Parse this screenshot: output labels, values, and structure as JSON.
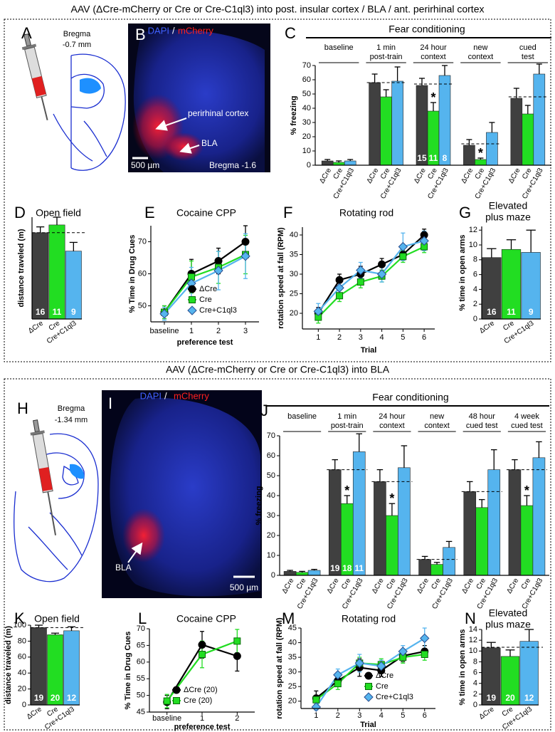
{
  "sections": [
    {
      "header": "AAV (ΔCre-mCherry or Cre or Cre-C1ql3) into post. insular cortex / BLA / ant. perirhinal cortex"
    },
    {
      "header": "AAV (ΔCre-mCherry or Cre or Cre-C1ql3) into BLA"
    }
  ],
  "schematics": [
    {
      "label": "A",
      "bregma": [
        "Bregma",
        "-0.7 mm"
      ]
    },
    {
      "label": "H",
      "bregma": [
        "Bregma",
        "-1.34 mm"
      ]
    }
  ],
  "images": [
    {
      "label": "B",
      "stain": [
        "DAPI",
        "/",
        "mCherry"
      ],
      "annotations": [
        "perirhinal cortex",
        "BLA"
      ],
      "scale_bar": "500 µm",
      "bregma": "Bregma -1.6"
    },
    {
      "label": "I",
      "stain": [
        "DAPI",
        "/",
        "mCherry"
      ],
      "annotations": [
        "BLA"
      ],
      "scale_bar": "500 µm"
    }
  ],
  "chart_data": [
    {
      "type": "bar",
      "label": "C",
      "title": "Fear conditioning",
      "ylabel": "% freezing",
      "categories": [
        [
          "baseline"
        ],
        [
          "1 min",
          "post-train"
        ],
        [
          "24 hour",
          "context"
        ],
        [
          "new",
          "context"
        ],
        [
          "cued",
          "test"
        ]
      ],
      "ylim": [
        0,
        70
      ],
      "yticks": [
        0,
        10,
        20,
        30,
        40,
        50,
        60,
        70
      ],
      "reference": [
        null,
        58,
        57,
        15,
        48
      ],
      "series": [
        {
          "name": "ΔCre",
          "color": "#404040",
          "values": [
            3,
            58,
            56,
            14,
            47
          ],
          "errors": [
            1,
            6,
            5,
            4,
            7
          ],
          "n": [
            null,
            null,
            15,
            null,
            null
          ],
          "marks": [
            null,
            null,
            null,
            null,
            null
          ]
        },
        {
          "name": "Cre",
          "color": "#22dd22",
          "values": [
            2,
            48,
            38,
            4,
            36
          ],
          "errors": [
            1,
            5,
            6,
            1,
            6
          ],
          "n": [
            null,
            null,
            11,
            null,
            null
          ],
          "marks": [
            null,
            null,
            "*",
            "*",
            null
          ]
        },
        {
          "name": "Cre+C1ql3",
          "color": "#55b4ee",
          "values": [
            3,
            59,
            63,
            23,
            64
          ],
          "errors": [
            1,
            10,
            7,
            7,
            7
          ],
          "n": [
            null,
            null,
            8,
            null,
            null
          ],
          "marks": [
            null,
            null,
            null,
            null,
            null
          ]
        }
      ]
    },
    {
      "type": "bar",
      "label": "D",
      "title": "Open field",
      "ylabel": "distance traveled (m)",
      "categories": [
        "ΔCre",
        "Cre",
        "Cre+C1ql3"
      ],
      "colors": [
        "#404040",
        "#22dd22",
        "#55b4ee"
      ],
      "values": [
        89,
        97,
        70
      ],
      "errors": [
        6,
        8,
        9
      ],
      "n": [
        16,
        11,
        9
      ],
      "reference": 89,
      "ylim": [
        0,
        105
      ]
    },
    {
      "type": "line",
      "label": "E",
      "title": "Cocaine CPP",
      "ylabel": "% Time in Drug Cues",
      "xlabel": "preference test",
      "categories": [
        "baseline",
        "1",
        "2",
        "3"
      ],
      "ylim": [
        45,
        75
      ],
      "yticks": [
        50,
        60,
        70
      ],
      "legend": "lower right",
      "series": [
        {
          "name": "ΔCre",
          "color": "#000000",
          "marker": "circle",
          "values": [
            48,
            60,
            64,
            70
          ],
          "errors": [
            2,
            4.5,
            4,
            5
          ]
        },
        {
          "name": "Cre",
          "color": "#22dd22",
          "marker": "square",
          "values": [
            48,
            59,
            62,
            66
          ],
          "errors": [
            2,
            5,
            5,
            6
          ]
        },
        {
          "name": "Cre+C1ql3",
          "color": "#55b4ee",
          "marker": "diamond",
          "values": [
            47.5,
            57,
            61,
            65.5
          ],
          "errors": [
            2,
            5,
            6,
            7
          ]
        }
      ]
    },
    {
      "type": "line",
      "label": "F",
      "title": "Rotating rod",
      "ylabel": "rotation speed at fall (RPM)",
      "xlabel": "Trial",
      "x": [
        1,
        2,
        3,
        4,
        5,
        6
      ],
      "xlim": [
        0.25,
        6.5
      ],
      "xticks": [
        1,
        2,
        3,
        4,
        5,
        6
      ],
      "ylim": [
        16,
        42
      ],
      "yticks": [
        20,
        25,
        30,
        35,
        40
      ],
      "series": [
        {
          "name": "ΔCre",
          "color": "#000000",
          "marker": "circle",
          "values": [
            20,
            28.5,
            30,
            32.5,
            35,
            40
          ],
          "errors": [
            1.5,
            1.5,
            2,
            1.5,
            1.5,
            1.5
          ]
        },
        {
          "name": "Cre",
          "color": "#22dd22",
          "marker": "square",
          "values": [
            19,
            24.5,
            28,
            29.5,
            34.5,
            37
          ],
          "errors": [
            1.5,
            1.5,
            1.5,
            1.5,
            1.5,
            1.5
          ]
        },
        {
          "name": "Cre+C1ql3",
          "color": "#55b4ee",
          "marker": "diamond",
          "values": [
            20.5,
            26.5,
            31,
            30,
            37,
            38.5
          ],
          "errors": [
            2,
            2,
            2,
            2,
            3.5,
            2.5
          ]
        }
      ]
    },
    {
      "type": "bar",
      "label": "G",
      "title": [
        "Elevated",
        "plus maze"
      ],
      "ylabel": "% time in open arms",
      "categories": [
        "ΔCre",
        "Cre",
        "Cre+C1ql3"
      ],
      "colors": [
        "#404040",
        "#22dd22",
        "#55b4ee"
      ],
      "values": [
        8.3,
        9.4,
        9.0
      ],
      "errors": [
        1.2,
        1.3,
        3.0
      ],
      "n": [
        16,
        11,
        9
      ],
      "ylim": [
        0,
        12.5
      ],
      "yticks": [
        0,
        2,
        4,
        6,
        8,
        10,
        12
      ]
    },
    {
      "type": "bar",
      "label": "J",
      "title": "Fear conditioning",
      "ylabel": "% freezing",
      "categories": [
        [
          "baseline"
        ],
        [
          "1 min",
          "post-train"
        ],
        [
          "24 hour",
          "context"
        ],
        [
          "new",
          "context"
        ],
        [
          "48 hour",
          "cued test"
        ],
        [
          "4 week",
          "cued test"
        ]
      ],
      "ylim": [
        0,
        70
      ],
      "yticks": [
        0,
        10,
        20,
        30,
        40,
        50,
        60,
        70
      ],
      "reference": [
        null,
        53,
        47,
        8,
        42,
        53
      ],
      "series": [
        {
          "name": "ΔCre",
          "color": "#404040",
          "values": [
            2,
            53,
            47,
            8,
            42,
            53
          ],
          "errors": [
            0.5,
            5,
            6,
            1.5,
            5,
            5
          ],
          "n": [
            null,
            19,
            null,
            null,
            null,
            null
          ],
          "marks": [
            null,
            null,
            null,
            null,
            null,
            null
          ]
        },
        {
          "name": "Cre",
          "color": "#22dd22",
          "values": [
            1.5,
            36,
            30,
            5.5,
            34,
            35
          ],
          "errors": [
            0.5,
            4,
            6,
            1,
            4,
            5
          ],
          "n": [
            null,
            18,
            null,
            null,
            null,
            null
          ],
          "marks": [
            null,
            "*",
            "*",
            null,
            null,
            "*"
          ]
        },
        {
          "name": "Cre+C1ql3",
          "color": "#55b4ee",
          "values": [
            2.5,
            62,
            54,
            14,
            53,
            59
          ],
          "errors": [
            0.5,
            9,
            11,
            3,
            10,
            8
          ],
          "n": [
            null,
            11,
            null,
            null,
            null,
            null
          ],
          "marks": [
            null,
            null,
            null,
            null,
            null,
            null
          ]
        }
      ]
    },
    {
      "type": "bar",
      "label": "K",
      "title": "Open field",
      "ylabel": "distance traveled (m)",
      "categories": [
        "ΔCre",
        "Cre",
        "Cre+C1ql3"
      ],
      "colors": [
        "#404040",
        "#22dd22",
        "#55b4ee"
      ],
      "values": [
        97,
        88,
        93
      ],
      "errors": [
        3,
        2,
        5
      ],
      "n": [
        19,
        20,
        12
      ],
      "reference": 97,
      "ylim": [
        0,
        100
      ],
      "yticks": [
        0,
        20,
        40,
        60,
        80,
        100
      ]
    },
    {
      "type": "line",
      "label": "L",
      "title": "Cocaine CPP",
      "ylabel": "% Time in Drug Cues",
      "xlabel": "preference test",
      "categories": [
        "baseline",
        "1",
        "2"
      ],
      "ylim": [
        45,
        70
      ],
      "yticks": [
        45,
        50,
        55,
        60,
        65,
        70
      ],
      "legend": "lower center",
      "series": [
        {
          "name": "ΔCre (20)",
          "color": "#000000",
          "marker": "circle",
          "values": [
            48,
            65.2,
            61.8
          ],
          "errors": [
            2,
            4,
            4.5
          ]
        },
        {
          "name": "Cre (20)",
          "color": "#22dd22",
          "marker": "square",
          "values": [
            48.3,
            62.3,
            66.3
          ],
          "errors": [
            2,
            4,
            3.5
          ]
        }
      ]
    },
    {
      "type": "line",
      "label": "M",
      "title": "Rotating rod",
      "ylabel": "rotation speed at fall (RPM)",
      "xlabel": "Trial",
      "x": [
        1,
        2,
        3,
        4,
        5,
        6
      ],
      "xlim": [
        0.3,
        6.5
      ],
      "xticks": [
        1,
        2,
        3,
        4,
        5,
        6
      ],
      "ylim": [
        17.5,
        45
      ],
      "yticks": [
        20,
        25,
        30,
        35,
        40,
        45
      ],
      "legend": "lower right",
      "series": [
        {
          "name": "ΔCre",
          "color": "#000000",
          "marker": "circle",
          "values": [
            21,
            27,
            31.5,
            30.5,
            35.5,
            37
          ],
          "errors": [
            2.5,
            2,
            3,
            2,
            2,
            2
          ]
        },
        {
          "name": "Cre",
          "color": "#22dd22",
          "marker": "square",
          "values": [
            20.5,
            26,
            33,
            32.5,
            35,
            36
          ],
          "errors": [
            1.5,
            2,
            2,
            2,
            2,
            2
          ]
        },
        {
          "name": "Cre+C1ql3",
          "color": "#55b4ee",
          "marker": "diamond",
          "values": [
            18,
            29,
            33,
            32,
            37,
            41.5
          ],
          "errors": [
            1,
            2,
            3,
            2,
            2,
            3.5
          ]
        }
      ]
    },
    {
      "type": "bar",
      "label": "N",
      "title": [
        "Elevated",
        "plus maze"
      ],
      "ylabel": "% time in open arms",
      "categories": [
        "ΔCre",
        "Cre",
        "Cre+C1ql3"
      ],
      "colors": [
        "#404040",
        "#22dd22",
        "#55b4ee"
      ],
      "values": [
        10.6,
        9.0,
        11.8
      ],
      "errors": [
        1,
        1.2,
        2.2
      ],
      "n": [
        19,
        20,
        12
      ],
      "reference": 10.7,
      "ylim": [
        0,
        14
      ],
      "yticks": [
        0,
        2,
        4,
        6,
        8,
        10,
        12,
        14
      ]
    }
  ]
}
